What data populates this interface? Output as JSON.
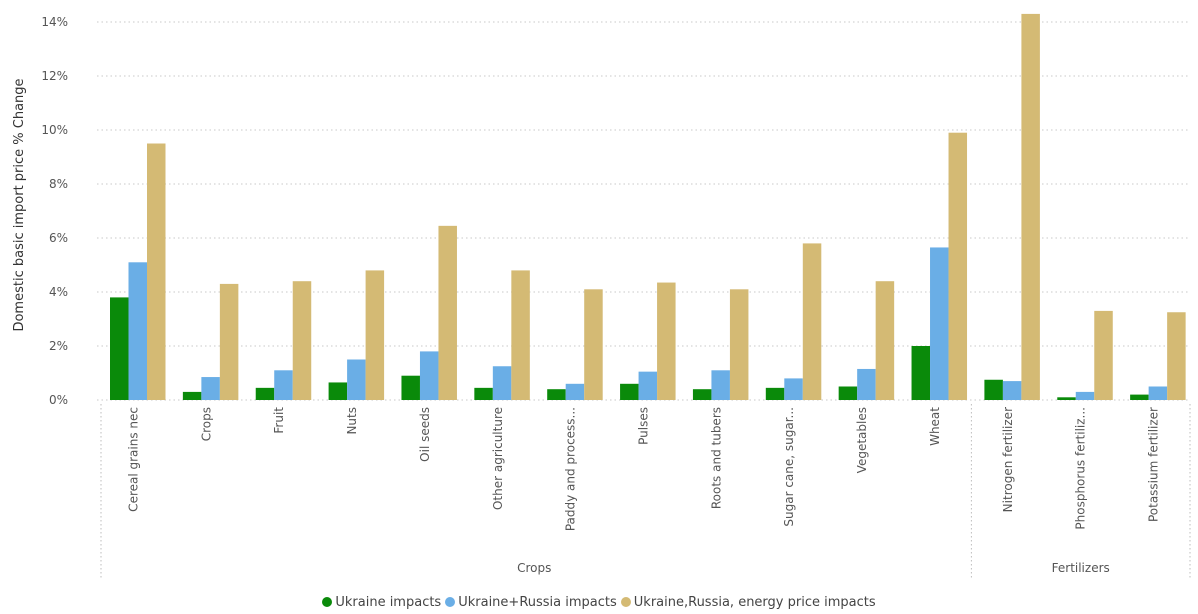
{
  "chart_data": {
    "type": "bar",
    "ylabel": "Domestic basic import price % Change",
    "ylim": [
      0,
      14
    ],
    "yticks": [
      "0%",
      "2%",
      "4%",
      "6%",
      "8%",
      "10%",
      "12%",
      "14%"
    ],
    "ytick_values": [
      0,
      2,
      4,
      6,
      8,
      10,
      12,
      14
    ],
    "grid": true,
    "legend_position": "bottom",
    "groups": [
      {
        "name": "Crops",
        "count": 12
      },
      {
        "name": "Fertilizers",
        "count": 3
      }
    ],
    "categories": [
      "Cereal grains nec",
      "Crops",
      "Fruit",
      "Nuts",
      "Oil seeds",
      "Other agriculture",
      "Paddy and process...",
      "Pulses",
      "Roots and tubers",
      "Sugar cane, sugar...",
      "Vegetables",
      "Wheat",
      "Nitrogen fertilizer",
      "Phosphorus fertiliz...",
      "Potassium fertilizer"
    ],
    "series": [
      {
        "name": "Ukraine impacts",
        "color": "#0a8a0a",
        "values": [
          3.8,
          0.3,
          0.45,
          0.65,
          0.9,
          0.45,
          0.4,
          0.6,
          0.4,
          0.45,
          0.5,
          2.0,
          0.75,
          0.1,
          0.2
        ]
      },
      {
        "name": "Ukraine+Russia impacts",
        "color": "#6aaee6",
        "values": [
          5.1,
          0.85,
          1.1,
          1.5,
          1.8,
          1.25,
          0.6,
          1.05,
          1.1,
          0.8,
          1.15,
          5.65,
          0.7,
          0.3,
          0.5
        ]
      },
      {
        "name": "Ukraine,Russia, energy price impacts",
        "color": "#d4ba74",
        "values": [
          9.5,
          4.3,
          4.4,
          4.8,
          6.45,
          4.8,
          4.1,
          4.35,
          4.1,
          5.8,
          4.4,
          9.9,
          14.3,
          3.3,
          3.25
        ]
      }
    ]
  }
}
